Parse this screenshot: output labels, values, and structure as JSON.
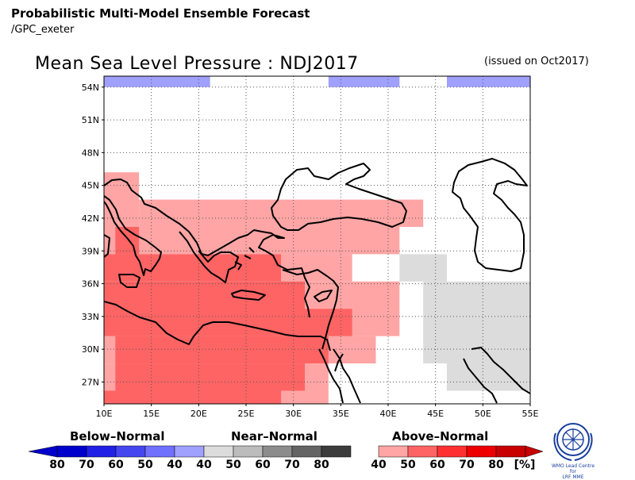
{
  "header": {
    "title": "Probabilistic Multi-Model Ensemble Forecast",
    "subtitle": "/GPC_exeter"
  },
  "map": {
    "title": "Mean Sea Level Pressure : NDJ2017",
    "issued": "(issued on Oct2017)",
    "lon_range": [
      10,
      55
    ],
    "lat_range": [
      25,
      55
    ],
    "lat_ticks": [
      "54N",
      "51N",
      "48N",
      "45N",
      "42N",
      "39N",
      "36N",
      "33N",
      "30N",
      "27N"
    ],
    "lon_ticks": [
      "10E",
      "15E",
      "20E",
      "25E",
      "30E",
      "35E",
      "40E",
      "45E",
      "50E",
      "55E"
    ]
  },
  "colors": {
    "below_40": "#a0a0ff",
    "near_40": "#dcdcdc",
    "above_40": "#ffa5a5",
    "above_50": "#ff6464",
    "above_60": "#ff3030"
  },
  "regions": [
    {
      "category": "below",
      "bin": 40,
      "lon": [
        10,
        21.2
      ],
      "lat": [
        54,
        55
      ]
    },
    {
      "category": "below",
      "bin": 40,
      "lon": [
        33.7,
        41.2
      ],
      "lat": [
        54,
        55
      ]
    },
    {
      "category": "below",
      "bin": 40,
      "lon": [
        46.2,
        55
      ],
      "lat": [
        54,
        55
      ]
    },
    {
      "category": "above",
      "bin": 40,
      "lon": [
        10,
        13.7
      ],
      "lat": [
        41.2,
        46.2
      ]
    },
    {
      "category": "above",
      "bin": 40,
      "lon": [
        13.7,
        43.7
      ],
      "lat": [
        41.2,
        43.7
      ]
    },
    {
      "category": "above",
      "bin": 40,
      "lon": [
        10,
        41.2
      ],
      "lat": [
        38.7,
        41.2
      ]
    },
    {
      "category": "above",
      "bin": 40,
      "lon": [
        28.7,
        36.2
      ],
      "lat": [
        36.2,
        38.7
      ]
    },
    {
      "category": "above",
      "bin": 40,
      "lon": [
        28.7,
        41.2
      ],
      "lat": [
        31.2,
        36.2
      ]
    },
    {
      "category": "above",
      "bin": 40,
      "lon": [
        10,
        38.7
      ],
      "lat": [
        28.7,
        31.2
      ]
    },
    {
      "category": "above",
      "bin": 40,
      "lon": [
        10,
        33.7
      ],
      "lat": [
        25,
        28.7
      ]
    },
    {
      "category": "above",
      "bin": 50,
      "lon": [
        11.2,
        13.7
      ],
      "lat": [
        38.7,
        41.2
      ]
    },
    {
      "category": "above",
      "bin": 50,
      "lon": [
        10,
        28.7
      ],
      "lat": [
        36.2,
        38.7
      ]
    },
    {
      "category": "above",
      "bin": 50,
      "lon": [
        10,
        31.2
      ],
      "lat": [
        32.7,
        36.2
      ]
    },
    {
      "category": "above",
      "bin": 50,
      "lon": [
        10,
        36.2
      ],
      "lat": [
        31.2,
        33.7
      ]
    },
    {
      "category": "above",
      "bin": 50,
      "lon": [
        11.2,
        33.7
      ],
      "lat": [
        28.7,
        31.2
      ]
    },
    {
      "category": "above",
      "bin": 50,
      "lon": [
        11.2,
        31.2
      ],
      "lat": [
        26.2,
        28.7
      ]
    },
    {
      "category": "above",
      "bin": 50,
      "lon": [
        10,
        28.7
      ],
      "lat": [
        25,
        26.2
      ]
    },
    {
      "category": "near",
      "bin": 40,
      "lon": [
        41.2,
        46.2
      ],
      "lat": [
        36.2,
        38.7
      ]
    },
    {
      "category": "near",
      "bin": 40,
      "lon": [
        43.7,
        55
      ],
      "lat": [
        28.7,
        36.2
      ]
    },
    {
      "category": "near",
      "bin": 40,
      "lon": [
        46.2,
        55
      ],
      "lat": [
        26.2,
        28.7
      ]
    }
  ],
  "legend": {
    "below": {
      "title": "Below–Normal",
      "labels": [
        "80",
        "70",
        "60",
        "50",
        "40"
      ],
      "colors": [
        "#0000cd",
        "#2020e6",
        "#4646f0",
        "#7070ff",
        "#a0a0ff"
      ]
    },
    "near": {
      "title": "Near–Normal",
      "labels": [
        "40",
        "50",
        "60",
        "70",
        "80"
      ],
      "colors": [
        "#dcdcdc",
        "#bcbcbc",
        "#8c8c8c",
        "#646464",
        "#3c3c3c"
      ]
    },
    "above": {
      "title": "Above–Normal",
      "labels": [
        "40",
        "50",
        "60",
        "70",
        "80"
      ],
      "colors": [
        "#ffa5a5",
        "#ff6464",
        "#ff3030",
        "#ee0000",
        "#c80000"
      ],
      "unit": "[%]"
    }
  },
  "logo": {
    "text_line1": "WMO Lead Centre for",
    "text_line2": "LRF MME"
  }
}
